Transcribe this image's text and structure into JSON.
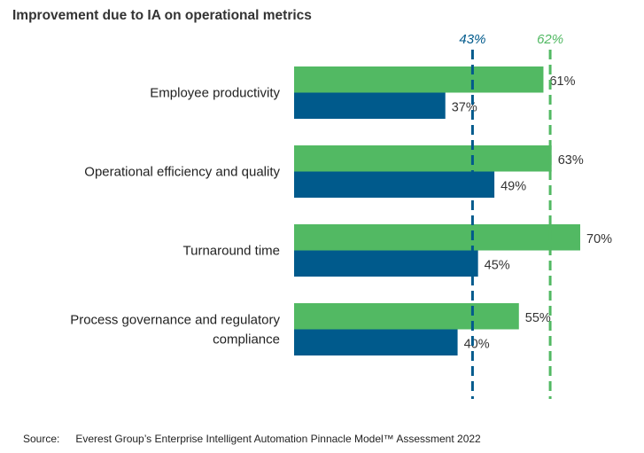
{
  "title": "Improvement due to IA on operational metrics",
  "source_label": "Source:",
  "source_text": "Everest Group’s Enterprise Intelligent Automation Pinnacle Model™ Assessment 2022",
  "chart_data": {
    "type": "bar",
    "orientation": "horizontal",
    "title": "Improvement due to IA on operational metrics",
    "categories": [
      [
        "Employee productivity"
      ],
      [
        "Operational efficiency and quality"
      ],
      [
        "Turnaround time"
      ],
      [
        "Process governance and regulatory",
        "compliance"
      ]
    ],
    "series": [
      {
        "color": "#52b963",
        "values": [
          61,
          63,
          70,
          55
        ]
      },
      {
        "color": "#005a8c",
        "values": [
          37,
          49,
          45,
          40
        ]
      }
    ],
    "reference_lines": [
      {
        "value": 43,
        "label": "43%",
        "color": "#005a8c",
        "style": "dashed"
      },
      {
        "value": 62,
        "label": "62%",
        "color": "#52b963",
        "style": "dashed"
      }
    ],
    "value_format": "%",
    "xlim": [
      0,
      70
    ],
    "grid": false,
    "legend": "none"
  }
}
